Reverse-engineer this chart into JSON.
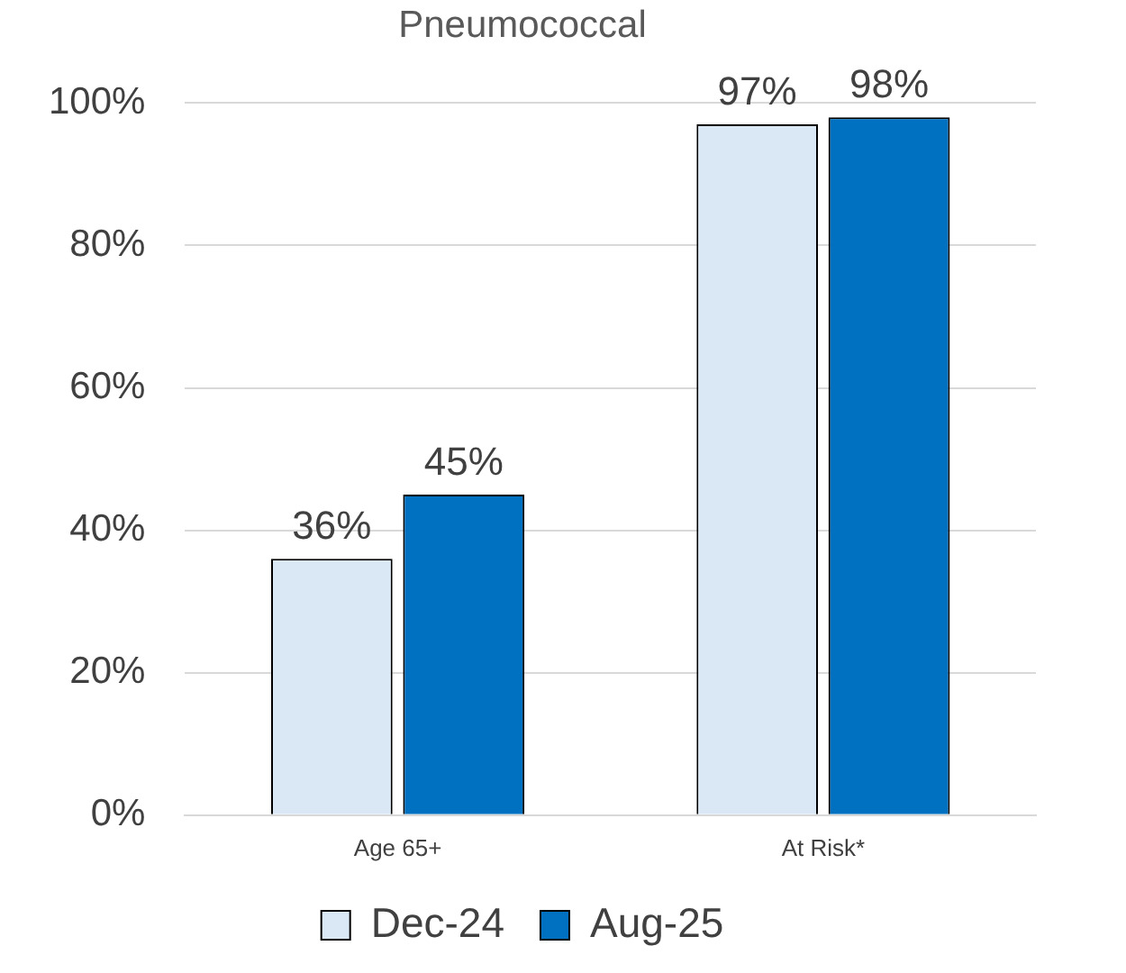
{
  "chart_data": {
    "type": "bar",
    "title": "Pneumococcal",
    "categories": [
      "Age 65+",
      "At Risk*"
    ],
    "series": [
      {
        "name": "Dec-24",
        "color": "#dae8f6",
        "values": [
          36,
          97
        ],
        "value_labels": [
          "36%",
          "97%"
        ]
      },
      {
        "name": "Aug-25",
        "color": "#0070c0",
        "values": [
          45,
          98
        ],
        "value_labels": [
          "45%",
          "98%"
        ]
      }
    ],
    "ylim": [
      0,
      100
    ],
    "yticks": [
      {
        "value": 0,
        "label": "0%"
      },
      {
        "value": 20,
        "label": "20%"
      },
      {
        "value": 40,
        "label": "40%"
      },
      {
        "value": 60,
        "label": "60%"
      },
      {
        "value": 80,
        "label": "80%"
      },
      {
        "value": 100,
        "label": "100%"
      }
    ],
    "grid": "y",
    "legend": "bottom"
  }
}
